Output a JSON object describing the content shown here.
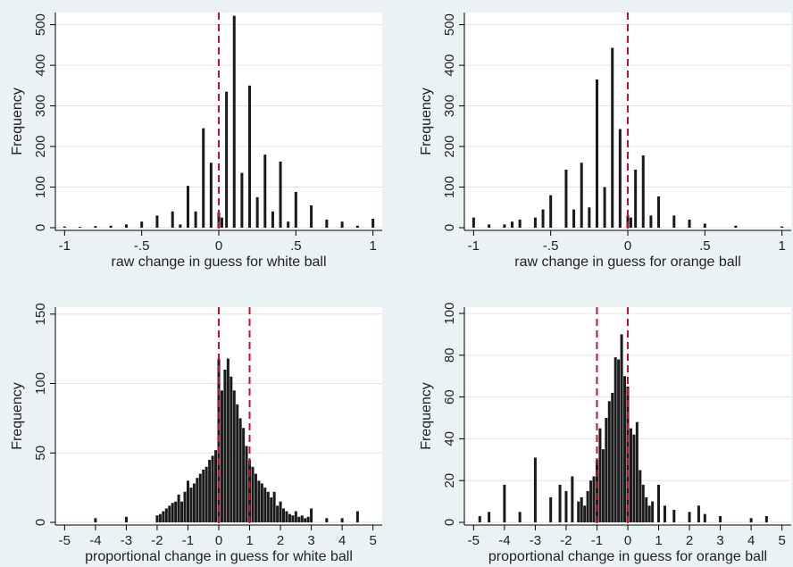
{
  "chart_data": [
    {
      "type": "bar",
      "x_label": "raw change in guess for white ball",
      "y_label": "Frequency",
      "x": [
        -1,
        -0.9,
        -0.8,
        -0.7,
        -0.6,
        -0.5,
        -0.4,
        -0.3,
        -0.25,
        -0.2,
        -0.15,
        -0.1,
        -0.05,
        0,
        0.02,
        0.05,
        0.1,
        0.15,
        0.2,
        0.25,
        0.3,
        0.35,
        0.4,
        0.45,
        0.5,
        0.6,
        0.7,
        0.8,
        0.9,
        1
      ],
      "values": [
        3,
        2,
        4,
        5,
        8,
        15,
        30,
        40,
        8,
        103,
        40,
        245,
        160,
        38,
        25,
        335,
        522,
        135,
        350,
        75,
        180,
        40,
        163,
        15,
        88,
        55,
        20,
        15,
        5,
        22
      ],
      "color": "#1a1a1a",
      "xlim": [
        -1.06,
        1.06
      ],
      "ylim": [
        0,
        530
      ],
      "xticks": [
        -1,
        {
          "value": -0.5,
          "label": "-.5"
        },
        0,
        {
          "value": 0.5,
          "label": ".5"
        },
        1
      ],
      "yticks": [
        0,
        100,
        200,
        300,
        400,
        500
      ],
      "grid": true,
      "ref_lines": [
        0
      ],
      "ref_color": "#c8102e"
    },
    {
      "type": "bar",
      "x_label": "raw change in guess for orange ball",
      "y_label": "Frequency",
      "x": [
        -1,
        -0.9,
        -0.8,
        -0.75,
        -0.7,
        -0.6,
        -0.55,
        -0.5,
        -0.4,
        -0.35,
        -0.3,
        -0.25,
        -0.2,
        -0.15,
        -0.1,
        -0.05,
        0,
        0.02,
        0.05,
        0.1,
        0.15,
        0.2,
        0.3,
        0.4,
        0.5,
        0.7,
        1
      ],
      "values": [
        25,
        8,
        8,
        15,
        20,
        25,
        45,
        80,
        143,
        45,
        160,
        50,
        365,
        100,
        443,
        243,
        30,
        25,
        143,
        178,
        30,
        77,
        30,
        20,
        10,
        5,
        3
      ],
      "color": "#1a1a1a",
      "xlim": [
        -1.06,
        1.06
      ],
      "ylim": [
        0,
        530
      ],
      "xticks": [
        -1,
        {
          "value": -0.5,
          "label": "-.5"
        },
        0,
        {
          "value": 0.5,
          "label": ".5"
        },
        1
      ],
      "yticks": [
        0,
        100,
        200,
        300,
        400,
        500
      ],
      "grid": true,
      "ref_lines": [
        0
      ],
      "ref_color": "#c8102e"
    },
    {
      "type": "bar",
      "x_label": "proportional change in guess for white ball",
      "y_label": "Frequency",
      "x": [
        -4,
        -3,
        -2,
        -1.9,
        -1.8,
        -1.7,
        -1.6,
        -1.5,
        -1.4,
        -1.3,
        -1.2,
        -1.1,
        -1,
        -0.9,
        -0.8,
        -0.7,
        -0.6,
        -0.5,
        -0.4,
        -0.3,
        -0.2,
        -0.1,
        0,
        0.1,
        0.2,
        0.3,
        0.4,
        0.5,
        0.6,
        0.7,
        0.8,
        0.9,
        1,
        1.1,
        1.2,
        1.3,
        1.4,
        1.5,
        1.6,
        1.7,
        1.8,
        1.9,
        2,
        2.1,
        2.2,
        2.3,
        2.4,
        2.5,
        2.6,
        2.7,
        2.8,
        2.9,
        3,
        3.5,
        4,
        4.5
      ],
      "values": [
        3,
        4,
        5,
        6,
        8,
        10,
        12,
        14,
        15,
        20,
        15,
        22,
        30,
        25,
        28,
        32,
        35,
        38,
        40,
        45,
        48,
        52,
        118,
        95,
        110,
        118,
        105,
        95,
        85,
        75,
        68,
        55,
        45,
        40,
        35,
        30,
        28,
        25,
        22,
        18,
        22,
        12,
        15,
        10,
        8,
        6,
        5,
        8,
        4,
        5,
        3,
        4,
        10,
        3,
        3,
        8
      ],
      "color": "#1a1a1a",
      "xlim": [
        -5.3,
        5.3
      ],
      "ylim": [
        0,
        155
      ],
      "xticks": [
        -5,
        -4,
        -3,
        -2,
        -1,
        0,
        1,
        2,
        3,
        4,
        5
      ],
      "yticks": [
        0,
        50,
        100,
        150
      ],
      "grid": true,
      "ref_lines": [
        0,
        1
      ],
      "ref_color": "#c8102e"
    },
    {
      "type": "bar",
      "x_label": "proportional change in guess for orange ball",
      "y_label": "Frequency",
      "x": [
        -4.8,
        -4.5,
        -4,
        -3.5,
        -3,
        -2.5,
        -2.2,
        -2,
        -1.8,
        -1.6,
        -1.5,
        -1.4,
        -1.3,
        -1.2,
        -1.1,
        -1,
        -0.9,
        -0.8,
        -0.7,
        -0.6,
        -0.5,
        -0.4,
        -0.3,
        -0.2,
        -0.1,
        0,
        0.1,
        0.2,
        0.3,
        0.4,
        0.5,
        0.6,
        0.7,
        0.8,
        1,
        1.2,
        1.5,
        2,
        2.3,
        2.5,
        3,
        4,
        4.5
      ],
      "values": [
        3,
        5,
        18,
        5,
        31,
        12,
        18,
        15,
        22,
        10,
        12,
        8,
        15,
        20,
        22,
        30,
        45,
        35,
        50,
        58,
        62,
        79,
        78,
        90,
        70,
        65,
        45,
        42,
        48,
        25,
        18,
        12,
        8,
        10,
        18,
        8,
        6,
        5,
        8,
        4,
        3,
        2,
        3
      ],
      "color": "#1a1a1a",
      "xlim": [
        -5.3,
        5.3
      ],
      "ylim": [
        0,
        103
      ],
      "xticks": [
        -5,
        -4,
        -3,
        -2,
        -1,
        0,
        1,
        2,
        3,
        4,
        5
      ],
      "yticks": [
        0,
        20,
        40,
        60,
        80,
        100
      ],
      "grid": true,
      "ref_lines": [
        -1,
        0
      ],
      "ref_color": "#c8102e"
    }
  ]
}
